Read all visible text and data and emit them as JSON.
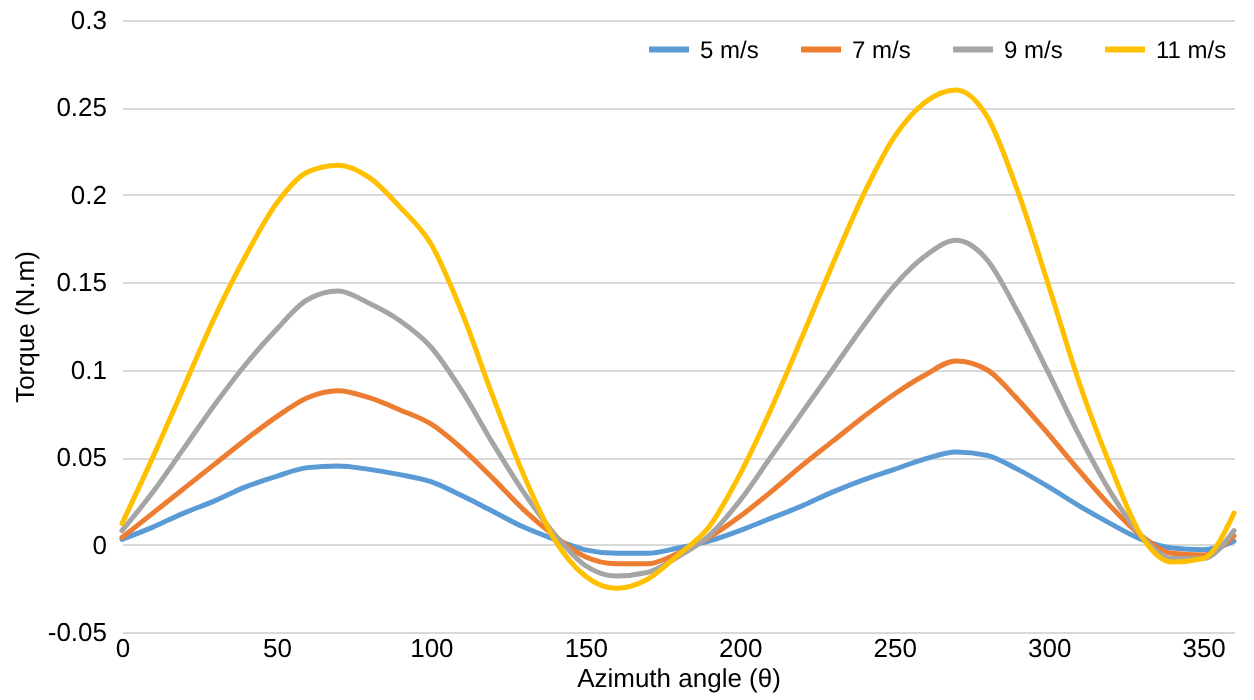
{
  "chart_data": {
    "type": "line",
    "xlabel": "Azimuth angle (θ)",
    "ylabel": "Torque (N.m)",
    "x": [
      0,
      10,
      20,
      30,
      40,
      50,
      60,
      70,
      80,
      90,
      100,
      110,
      120,
      130,
      140,
      150,
      160,
      170,
      180,
      190,
      200,
      210,
      220,
      230,
      240,
      250,
      260,
      270,
      280,
      290,
      300,
      310,
      320,
      330,
      340,
      350,
      360
    ],
    "series": [
      {
        "name": "5 m/s",
        "color": "#5b9bd5",
        "values": [
          0.003,
          0.01,
          0.018,
          0.025,
          0.033,
          0.039,
          0.044,
          0.045,
          0.043,
          0.04,
          0.036,
          0.028,
          0.019,
          0.01,
          0.003,
          -0.003,
          -0.005,
          -0.005,
          -0.002,
          0.002,
          0.008,
          0.015,
          0.022,
          0.03,
          0.037,
          0.043,
          0.049,
          0.053,
          0.051,
          0.043,
          0.033,
          0.022,
          0.012,
          0.003,
          -0.002,
          -0.003,
          0.002
        ]
      },
      {
        "name": "7 m/s",
        "color": "#ed7d31",
        "values": [
          0.004,
          0.018,
          0.032,
          0.046,
          0.06,
          0.073,
          0.084,
          0.088,
          0.084,
          0.077,
          0.069,
          0.055,
          0.038,
          0.02,
          0.005,
          -0.007,
          -0.011,
          -0.011,
          -0.005,
          0.004,
          0.016,
          0.03,
          0.045,
          0.059,
          0.073,
          0.086,
          0.097,
          0.105,
          0.1,
          0.083,
          0.063,
          0.042,
          0.022,
          0.005,
          -0.005,
          -0.006,
          0.005
        ]
      },
      {
        "name": "9 m/s",
        "color": "#a5a5a5",
        "values": [
          0.008,
          0.03,
          0.055,
          0.08,
          0.103,
          0.123,
          0.14,
          0.145,
          0.138,
          0.128,
          0.113,
          0.088,
          0.058,
          0.03,
          0.006,
          -0.012,
          -0.018,
          -0.016,
          -0.007,
          0.005,
          0.025,
          0.05,
          0.075,
          0.1,
          0.125,
          0.148,
          0.165,
          0.174,
          0.163,
          0.133,
          0.098,
          0.062,
          0.03,
          0.005,
          -0.008,
          -0.008,
          0.008
        ]
      },
      {
        "name": "11 m/s",
        "color": "#ffc000",
        "values": [
          0.012,
          0.05,
          0.09,
          0.13,
          0.165,
          0.195,
          0.213,
          0.217,
          0.21,
          0.193,
          0.172,
          0.133,
          0.085,
          0.04,
          0.003,
          -0.018,
          -0.025,
          -0.02,
          -0.006,
          0.01,
          0.04,
          0.077,
          0.118,
          0.16,
          0.2,
          0.233,
          0.253,
          0.26,
          0.245,
          0.202,
          0.148,
          0.092,
          0.045,
          0.005,
          -0.01,
          -0.008,
          0.018
        ]
      }
    ],
    "xlim": [
      0,
      360
    ],
    "xticks": [
      0,
      50,
      100,
      150,
      200,
      250,
      300,
      350
    ],
    "ylim": [
      -0.05,
      0.3
    ],
    "yticks": [
      -0.05,
      0,
      0.05,
      0.1,
      0.15,
      0.2,
      0.25,
      0.3
    ],
    "grid": "y",
    "legend": "top right",
    "marker": "none",
    "line_style": "solid"
  }
}
